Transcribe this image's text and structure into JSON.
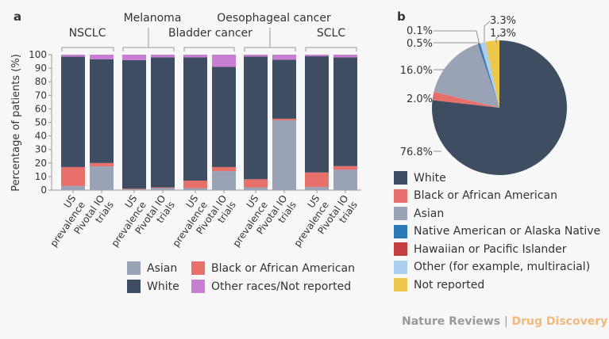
{
  "panel_a_label": "a",
  "panel_b_label": "b",
  "footer": {
    "brand": "Nature Reviews",
    "separator": "|",
    "journal": "Drug Discovery"
  },
  "colors": {
    "White": "#3f4d63",
    "Black or African American": "#e8706a",
    "Asian": "#9aa2b6",
    "Other races/Not reported": "#c87fd3",
    "Native American or Alaska Native": "#2a7ab8",
    "Hawaiian or Pacific Islander": "#c63d3d",
    "Other (for example, multiracial)": "#a9d0ee",
    "Not reported": "#edc84d"
  },
  "chart_data": [
    {
      "type": "bar",
      "stacked": true,
      "ylabel": "Percentage of patients (%)",
      "ylim": [
        0,
        100
      ],
      "yticks": [
        0,
        10,
        20,
        30,
        40,
        50,
        60,
        70,
        80,
        90,
        100
      ],
      "groups": [
        "NSCLC",
        "Melanoma",
        "Bladder cancer",
        "Oesophageal cancer",
        "SCLC"
      ],
      "categories": [
        "US prevalence",
        "Pivotal IO trials",
        "US prevalence",
        "Pivotal IO trials",
        "US prevalence",
        "Pivotal IO trials",
        "US prevalence",
        "Pivotal IO trials",
        "US prevalence",
        "Pivotal IO trials"
      ],
      "category_lines": [
        [
          "US",
          "prevalence"
        ],
        [
          "Pivotal IO",
          "trials"
        ]
      ],
      "series": [
        {
          "name": "Asian",
          "values": [
            3,
            17.5,
            0.5,
            1.5,
            1.5,
            14,
            2,
            51.5,
            2.3,
            15
          ]
        },
        {
          "name": "Black or African American",
          "values": [
            14,
            2.5,
            0.5,
            0.5,
            5.5,
            3,
            6,
            1.2,
            10.7,
            2.7
          ]
        },
        {
          "name": "White",
          "values": [
            81.5,
            76.5,
            95,
            96,
            91,
            74,
            90.6,
            43.6,
            85.8,
            80.3
          ]
        },
        {
          "name": "Other races/Not reported",
          "values": [
            1.5,
            3.5,
            4,
            2,
            2,
            9,
            1.4,
            3.7,
            1.2,
            2
          ]
        }
      ],
      "legend": [
        "Asian",
        "Black or African American",
        "White",
        "Other races/Not reported"
      ],
      "legend_position": "bottom",
      "grid": false
    },
    {
      "type": "pie",
      "slices": [
        {
          "name": "White",
          "value": 76.8,
          "label": "76.8%"
        },
        {
          "name": "Black or African American",
          "value": 2.0,
          "label": "2.0%"
        },
        {
          "name": "Asian",
          "value": 16.0,
          "label": "16.0%"
        },
        {
          "name": "Native American or Alaska Native",
          "value": 0.5,
          "label": "0.5%"
        },
        {
          "name": "Hawaiian or Pacific Islander",
          "value": 0.1,
          "label": "0.1%"
        },
        {
          "name": "Other (for example, multiracial)",
          "value": 1.3,
          "label": "1.3%"
        },
        {
          "name": "Not reported",
          "value": 3.3,
          "label": "3.3%"
        }
      ],
      "legend": [
        "White",
        "Black or African American",
        "Asian",
        "Native American or Alaska Native",
        "Hawaiian or Pacific Islander",
        "Other (for example, multiracial)",
        "Not reported"
      ],
      "legend_position": "bottom"
    }
  ]
}
